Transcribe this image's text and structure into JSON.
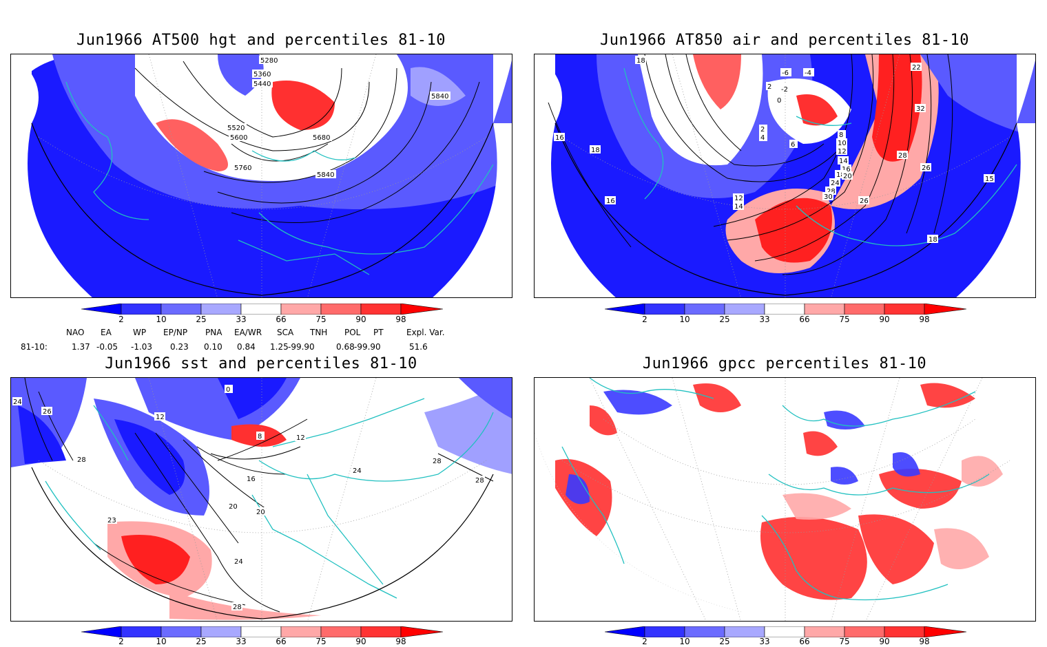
{
  "panels": [
    {
      "id": "p1",
      "title": "Jun1966 AT500 hgt and percentiles 81-10",
      "contour_labels": [
        "5280",
        "5360",
        "5440",
        "5520",
        "5600",
        "5680",
        "5760",
        "5840",
        "5840"
      ]
    },
    {
      "id": "p2",
      "title": "Jun1966 AT850 air and percentiles 81-10",
      "contour_labels": [
        "18",
        "18",
        "16",
        "16",
        "12",
        "14",
        "-6",
        "-4",
        "-2",
        "2",
        "0",
        "2",
        "4",
        "6",
        "8",
        "10",
        "12",
        "14",
        "16",
        "18",
        "20",
        "22",
        "24",
        "26",
        "28",
        "30",
        "32",
        "28",
        "26",
        "15",
        "18"
      ]
    },
    {
      "id": "p3",
      "title": "Jun1966 sst and percentiles 81-10",
      "contour_labels": [
        "24",
        "26",
        "28",
        "12",
        "0",
        "8",
        "12",
        "16",
        "20",
        "24",
        "28",
        "28",
        "23",
        "20",
        "24",
        "28"
      ]
    },
    {
      "id": "p4",
      "title": "Jun1966 gpcc percentiles 81-10",
      "contour_labels": []
    }
  ],
  "colorbar": {
    "labels": [
      "2",
      "10",
      "25",
      "33",
      "66",
      "75",
      "90",
      "98"
    ],
    "colors": {
      "blue1": "#0000ff",
      "blue2": "#3333ff",
      "blue3": "#6b6bff",
      "blue4": "#a8a8ff",
      "white": "#ffffff",
      "red1": "#ffa8a8",
      "red2": "#ff6b6b",
      "red3": "#ff3333",
      "red4": "#ff0000"
    }
  },
  "indices": {
    "headers": [
      "NAO",
      "EA",
      "WP",
      "EP/NP",
      "PNA",
      "EA/WR",
      "SCA",
      "TNH",
      "POL",
      "PT",
      "Expl. Var."
    ],
    "row_label": "81-10:",
    "values": [
      "1.37",
      "-0.05",
      "-1.03",
      "0.23",
      "0.10",
      "0.84",
      "1.25",
      "-99.90",
      "0.68",
      "-99.90",
      "51.6"
    ]
  },
  "map_colors": {
    "coast": "#20c0c0",
    "grid": "#999999",
    "deep_blue": "#1a1aff",
    "mid_blue": "#5a5aff",
    "light_blue": "#a0a0ff",
    "light_red": "#ffa8a8",
    "mid_red": "#ff6060",
    "deep_red": "#ff2020"
  }
}
